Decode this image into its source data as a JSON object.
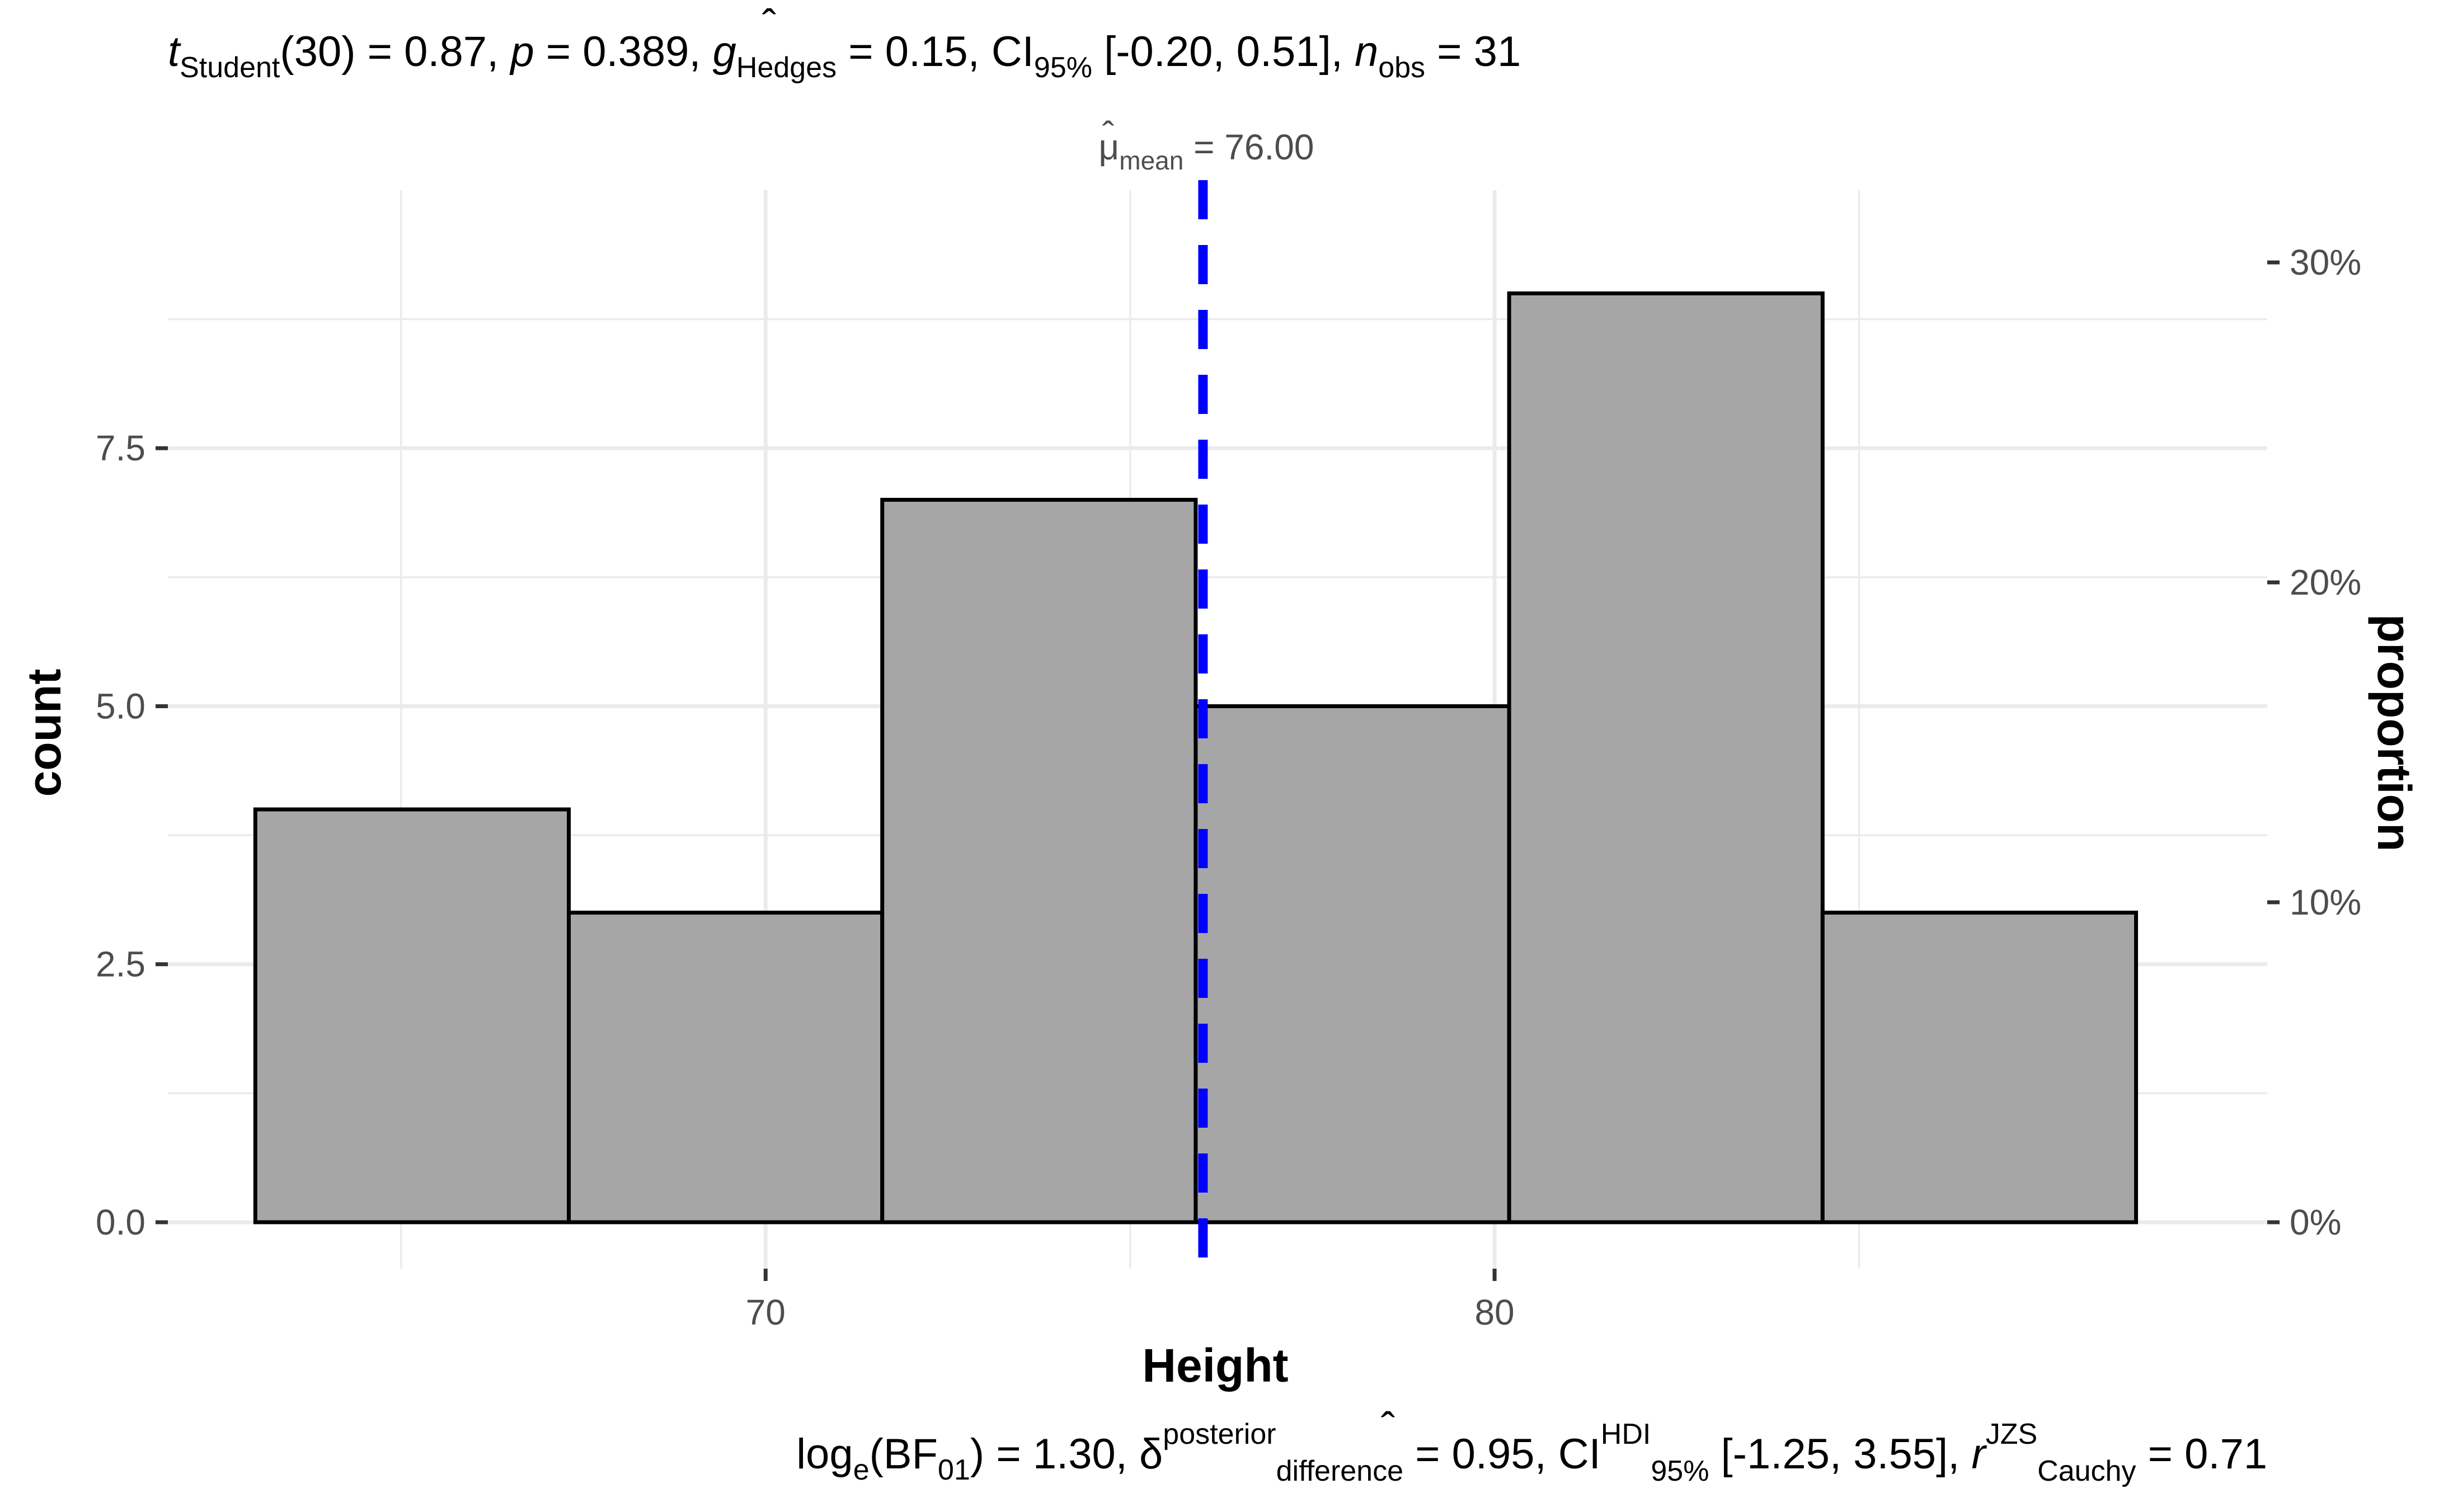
{
  "chart_data": {
    "type": "bar",
    "subtitle": {
      "t_symbol": "t",
      "t_sub": "Student",
      "t_value": "(30) = 0.87, ",
      "p_symbol": "p",
      "p_value": " = 0.389, ",
      "g_hat": "ˆ",
      "g_symbol": "g",
      "g_sub": "Hedges",
      "g_value": " = 0.15, CI",
      "ci_sub": "95%",
      "ci_value": " [-0.20, 0.51], ",
      "n_symbol": "n",
      "n_sub": "obs",
      "n_value": " = 31"
    },
    "caption": {
      "log_text": "log",
      "log_sub": "e",
      "bf_text": "(BF",
      "bf_sub": "01",
      "bf_value": ") = 1.30, ",
      "delta_hat": "ˆ",
      "delta_symbol": "δ",
      "delta_sup": "posterior",
      "delta_sub": "difference",
      "delta_value": " = 0.95, CI",
      "hdi_sup": "HDI",
      "hdi_sub": "95%",
      "hdi_value": " [-1.25, 3.55], ",
      "r_symbol": "r",
      "r_sup": "JZS",
      "r_sub": "Cauchy",
      "r_value": " = 0.71"
    },
    "mean_annotation": {
      "mu_hat": "ˆ",
      "mu_symbol": "μ",
      "mu_sub": "mean",
      "value_text": " = 76.00",
      "value": 76.0
    },
    "xlabel": "Height",
    "ylabel": "count",
    "y2label": "proportion",
    "xlim": [
      61.8,
      90.6
    ],
    "ylim": [
      -0.45,
      10.0
    ],
    "x_major_ticks": [
      70,
      80
    ],
    "x_tick_labels": [
      "70",
      "80"
    ],
    "x_minor_ticks": [
      65,
      75,
      85
    ],
    "y_major_ticks": [
      0,
      2.5,
      5,
      7.5
    ],
    "y_tick_labels": [
      "0.0",
      "2.5",
      "5.0",
      "7.5"
    ],
    "y_minor_ticks": [
      1.25,
      3.75,
      6.25,
      8.75
    ],
    "y2_ticks": [
      0,
      3.1,
      6.2,
      9.3
    ],
    "y2_tick_labels": [
      "0%",
      "10%",
      "20%",
      "30%"
    ],
    "grid": true,
    "series": [
      {
        "bins": [
          {
            "x0": 63.0,
            "x1": 67.3,
            "count": 4
          },
          {
            "x0": 67.3,
            "x1": 71.6,
            "count": 3
          },
          {
            "x0": 71.6,
            "x1": 75.9,
            "count": 7
          },
          {
            "x0": 75.9,
            "x1": 80.2,
            "count": 5
          },
          {
            "x0": 80.2,
            "x1": 84.5,
            "count": 9
          },
          {
            "x0": 84.5,
            "x1": 88.8,
            "count": 3
          }
        ]
      }
    ],
    "colors": {
      "bar_fill": "#a6a6a6",
      "bar_outline": "#000000",
      "mean_line": "#0000ff",
      "grid": "#ebebeb"
    }
  }
}
